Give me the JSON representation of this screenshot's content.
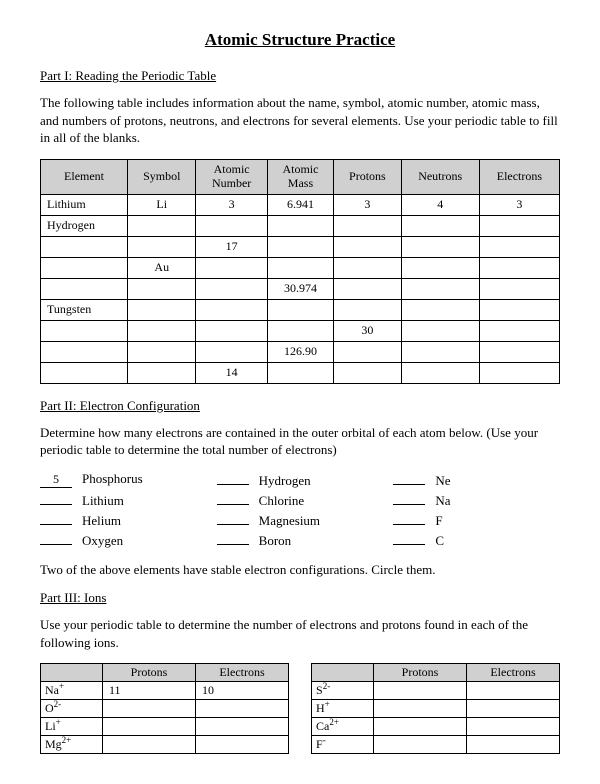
{
  "title": "Atomic Structure Practice",
  "part1": {
    "header": "Part I: Reading the Periodic Table",
    "intro": "The following table includes information about the name, symbol, atomic number, atomic mass, and numbers of protons, neutrons, and electrons for several elements. Use your periodic table to fill in all of the blanks.",
    "table": {
      "columns": [
        "Element",
        "Symbol",
        "Atomic Number",
        "Atomic Mass",
        "Protons",
        "Neutrons",
        "Electrons"
      ],
      "rows": [
        [
          "Lithium",
          "Li",
          "3",
          "6.941",
          "3",
          "4",
          "3"
        ],
        [
          "Hydrogen",
          "",
          "",
          "",
          "",
          "",
          ""
        ],
        [
          "",
          "",
          "17",
          "",
          "",
          "",
          ""
        ],
        [
          "",
          "Au",
          "",
          "",
          "",
          "",
          ""
        ],
        [
          "",
          "",
          "",
          "30.974",
          "",
          "",
          ""
        ],
        [
          "Tungsten",
          "",
          "",
          "",
          "",
          "",
          ""
        ],
        [
          "",
          "",
          "",
          "",
          "30",
          "",
          ""
        ],
        [
          "",
          "",
          "",
          "126.90",
          "",
          "",
          ""
        ],
        [
          "",
          "",
          "14",
          "",
          "",
          "",
          ""
        ]
      ],
      "header_bg": "#d0d0d0",
      "border_color": "#000000"
    }
  },
  "part2": {
    "header": "Part II: Electron Configuration",
    "intro": "Determine how many electrons are contained in the outer orbital of each atom below. (Use your periodic table to determine the total number of electrons)",
    "items": [
      {
        "blank": "5",
        "label": "Phosphorus"
      },
      {
        "blank": "",
        "label": "Hydrogen"
      },
      {
        "blank": "",
        "label": "Ne"
      },
      {
        "blank": "",
        "label": "Lithium"
      },
      {
        "blank": "",
        "label": "Chlorine"
      },
      {
        "blank": "",
        "label": "Na"
      },
      {
        "blank": "",
        "label": "Helium"
      },
      {
        "blank": "",
        "label": "Magnesium"
      },
      {
        "blank": "",
        "label": "F"
      },
      {
        "blank": "",
        "label": "Oxygen"
      },
      {
        "blank": "",
        "label": "Boron"
      },
      {
        "blank": "",
        "label": "C"
      }
    ],
    "note": "Two of the above elements have stable electron configurations. Circle them."
  },
  "part3": {
    "header": "Part III: Ions",
    "intro": "Use your periodic table to determine the number of electrons and protons found in each of the following ions.",
    "columns": [
      "Protons",
      "Electrons"
    ],
    "left_rows": [
      {
        "ion": "Na",
        "sup": "+",
        "protons": "11",
        "electrons": "10"
      },
      {
        "ion": "O",
        "sup": "2-",
        "protons": "",
        "electrons": ""
      },
      {
        "ion": "Li",
        "sup": "+",
        "protons": "",
        "electrons": ""
      },
      {
        "ion": "Mg",
        "sup": "2+",
        "protons": "",
        "electrons": ""
      }
    ],
    "right_rows": [
      {
        "ion": "S",
        "sup": "2-",
        "protons": "",
        "electrons": ""
      },
      {
        "ion": "H",
        "sup": "+",
        "protons": "",
        "electrons": ""
      },
      {
        "ion": "Ca",
        "sup": "2+",
        "protons": "",
        "electrons": ""
      },
      {
        "ion": "F",
        "sup": "-",
        "protons": "",
        "electrons": ""
      }
    ]
  }
}
